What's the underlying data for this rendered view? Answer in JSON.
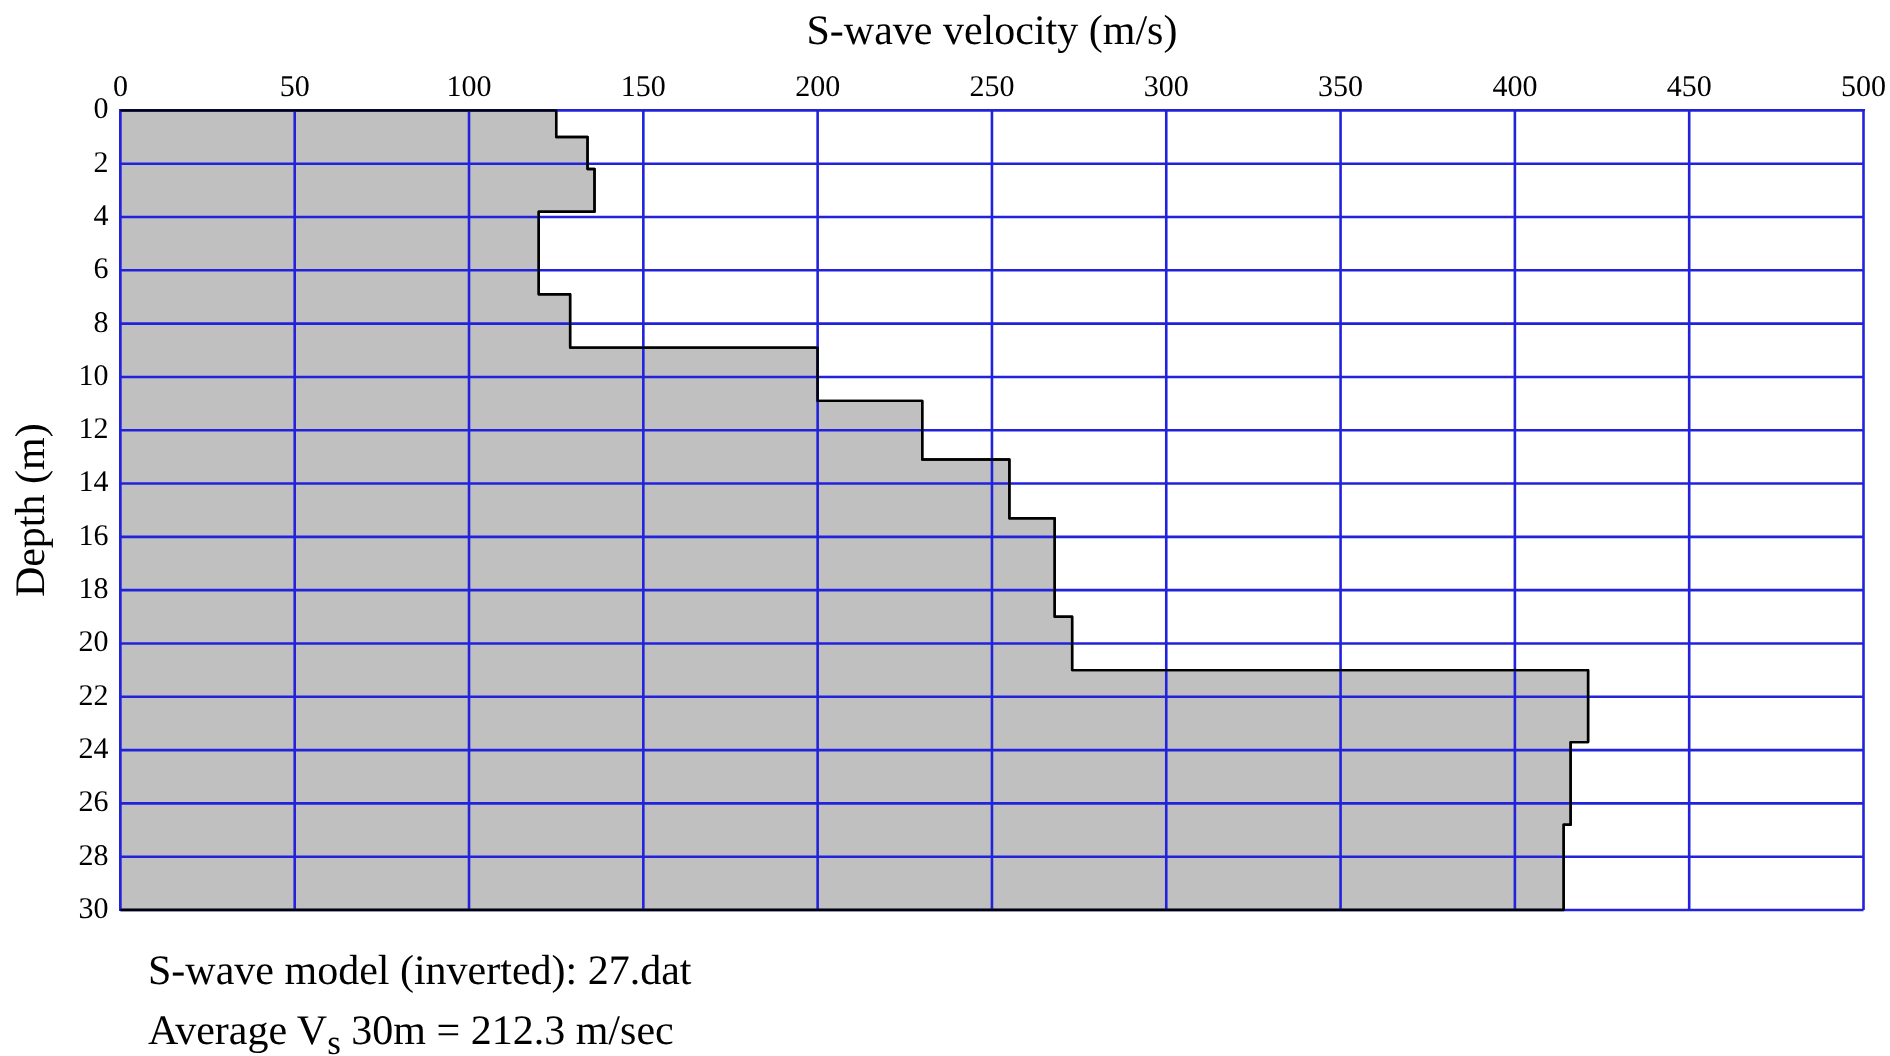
{
  "chart_data": {
    "type": "area",
    "xlabel": "S-wave velocity (m/s)",
    "ylabel": "Depth (m)",
    "xlim": [
      0,
      500
    ],
    "xticks": [
      0,
      50,
      100,
      150,
      200,
      250,
      300,
      350,
      400,
      450,
      500
    ],
    "ylim": [
      30,
      0
    ],
    "yticks": [
      0,
      2,
      4,
      6,
      8,
      10,
      12,
      14,
      16,
      18,
      20,
      22,
      24,
      26,
      28,
      30
    ],
    "grid": true,
    "marker": "none",
    "series": [
      {
        "color": "#c0c0c0",
        "x": [
          0,
          125,
          125,
          134,
          134,
          136,
          136,
          120,
          120,
          129,
          129,
          200,
          200,
          230,
          230,
          255,
          255,
          268,
          268,
          273,
          273,
          421,
          421,
          416,
          416,
          414,
          414,
          0
        ],
        "values": [
          0,
          0,
          1,
          1,
          2.2,
          2.2,
          3.8,
          3.8,
          6.9,
          6.9,
          8.9,
          8.9,
          10.9,
          10.9,
          13.1,
          13.1,
          15.3,
          15.3,
          19,
          19,
          21,
          21,
          23.7,
          23.7,
          26.8,
          26.8,
          30,
          30
        ]
      }
    ],
    "annotations": [
      "S-wave model (inverted): 27.dat",
      "Average V$_{s}$ 30m = 212.3 m/sec"
    ]
  }
}
